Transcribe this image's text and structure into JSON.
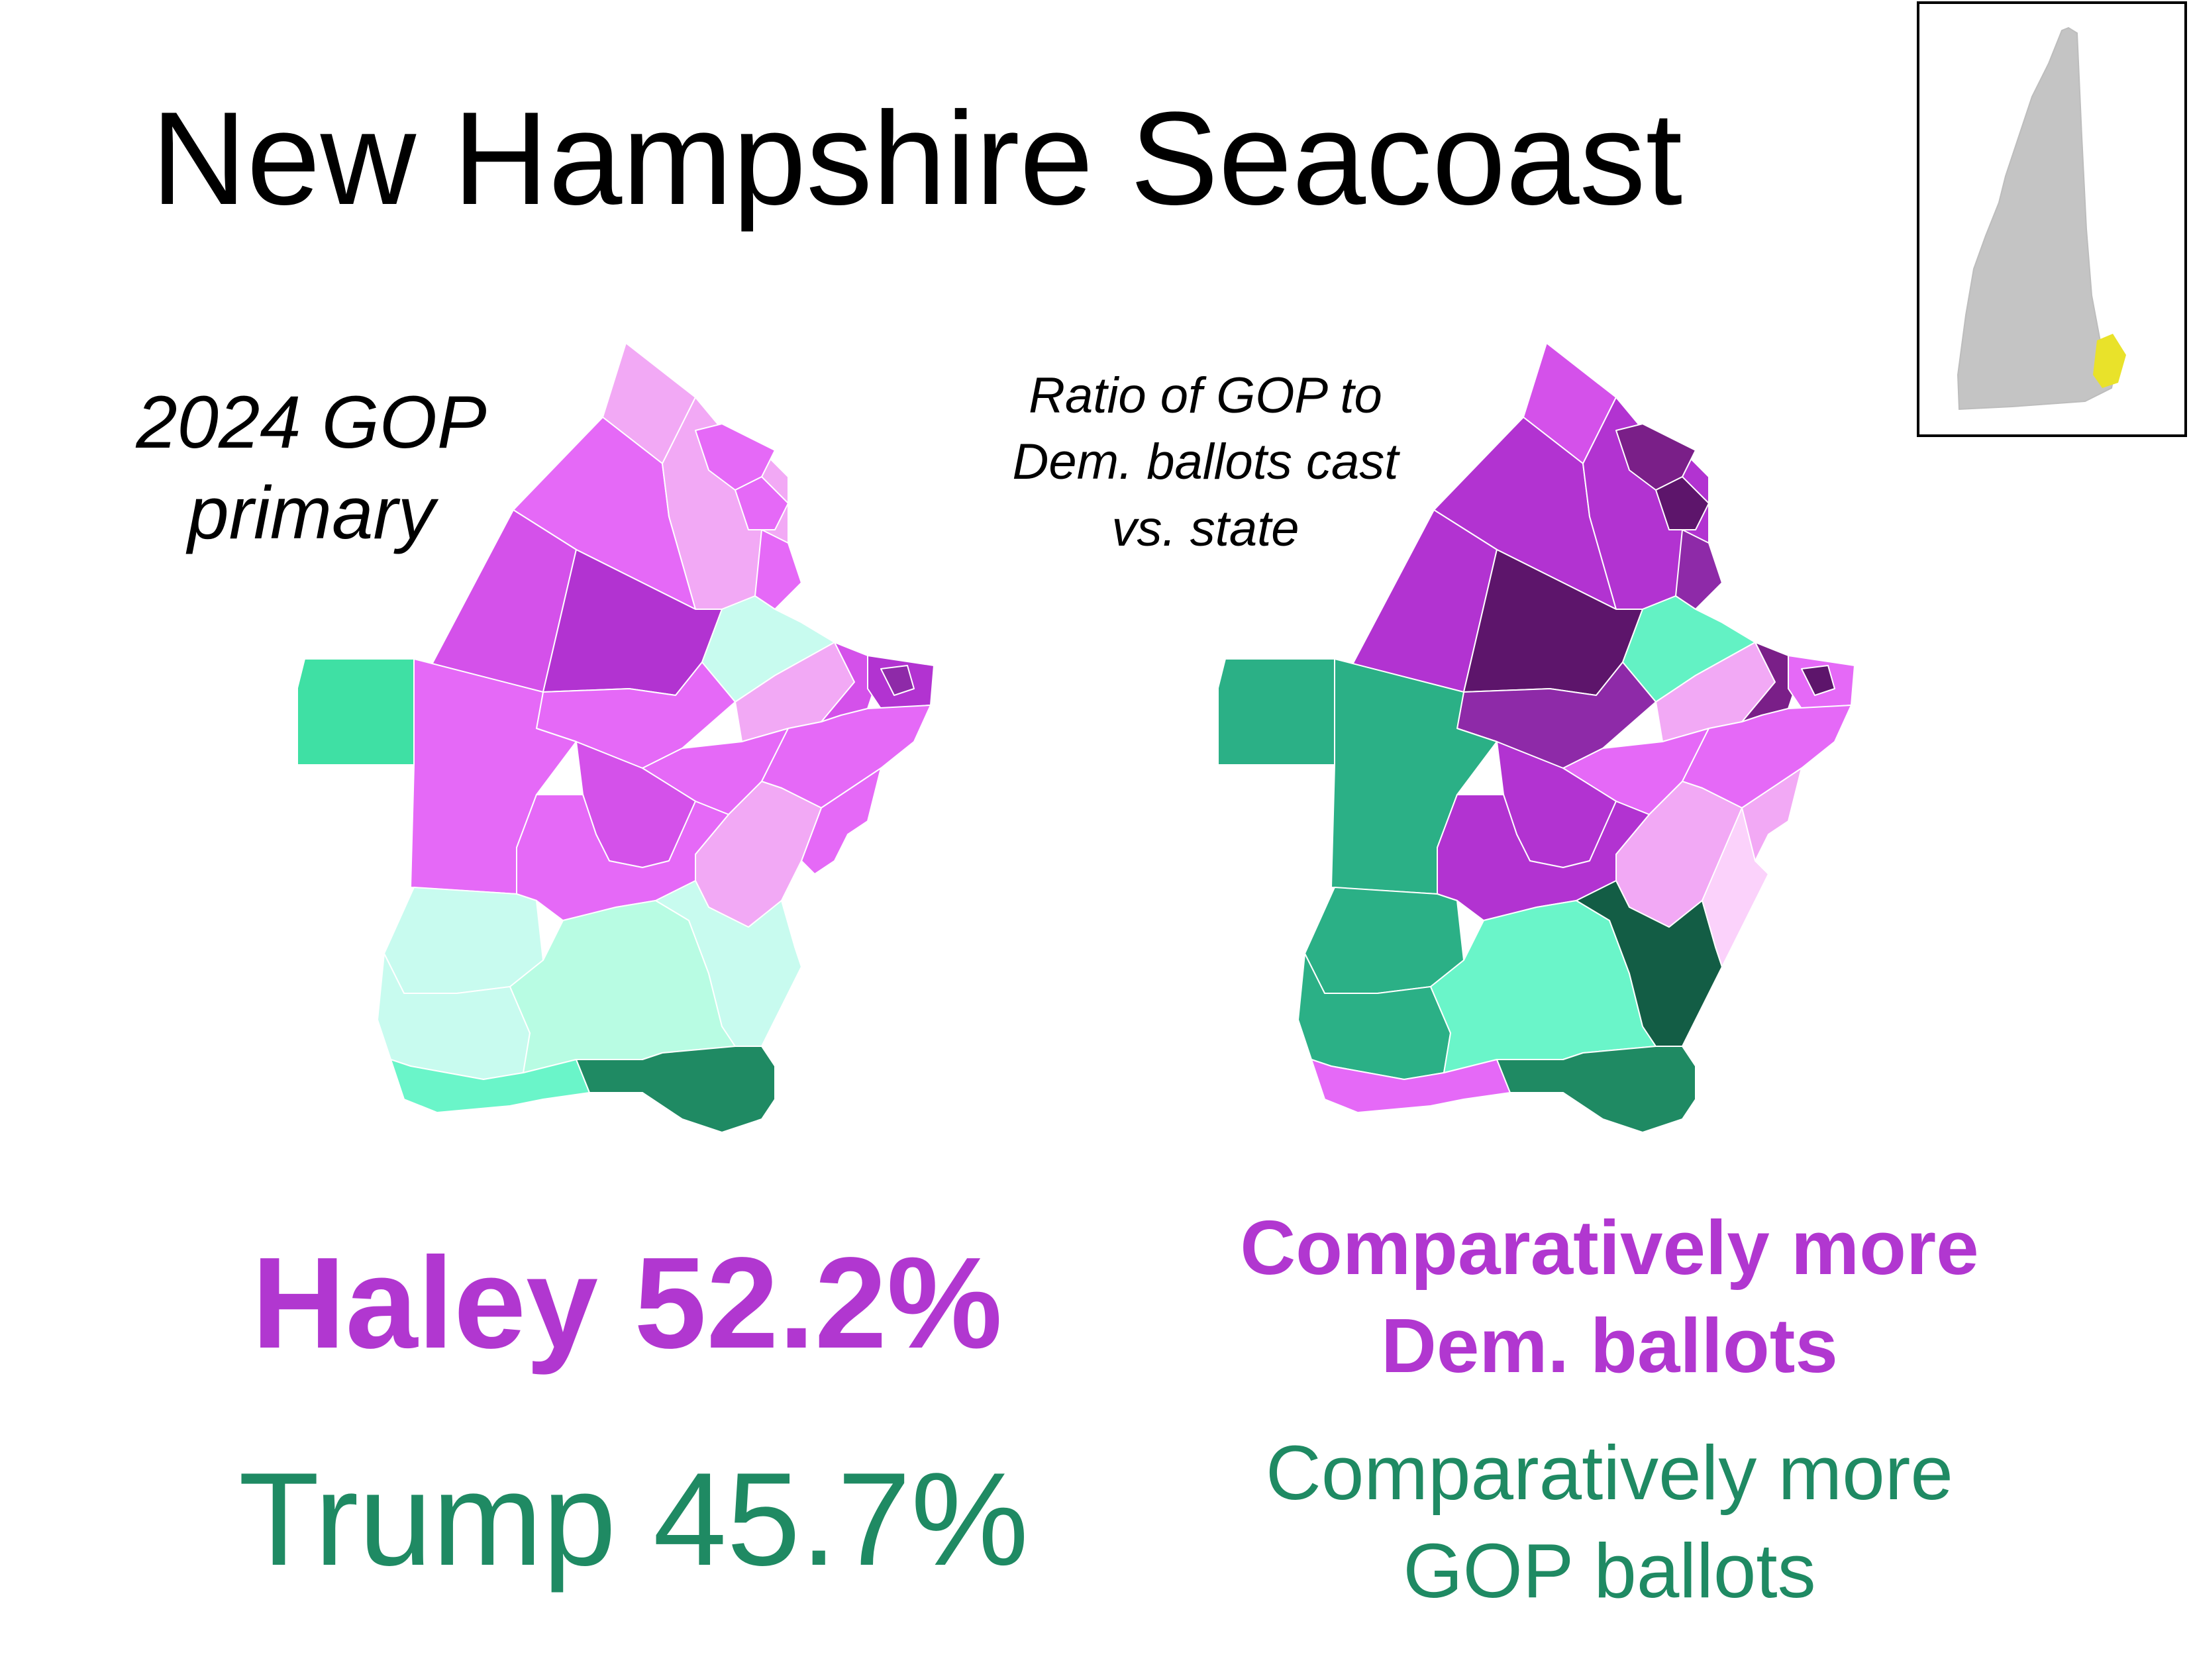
{
  "title": "New Hampshire Seacoast",
  "left_map": {
    "label_line1": "2024 GOP",
    "label_line2": "primary"
  },
  "right_map": {
    "label_line1": "Ratio of GOP to",
    "label_line2": "Dem. ballots cast",
    "label_line3": "vs. state"
  },
  "results": {
    "haley": "Haley 52.2%",
    "trump": "Trump 45.7%"
  },
  "legend": {
    "dem_line1": "Comparatively more",
    "dem_line2": "Dem. ballots",
    "gop_line1": "Comparatively more",
    "gop_line2": "GOP ballots"
  },
  "colors": {
    "haley_purple": "#b137d0",
    "trump_green": "#1f8a63",
    "inset_state": "#c4c4c4",
    "inset_highlight": "#e9e22a"
  }
}
